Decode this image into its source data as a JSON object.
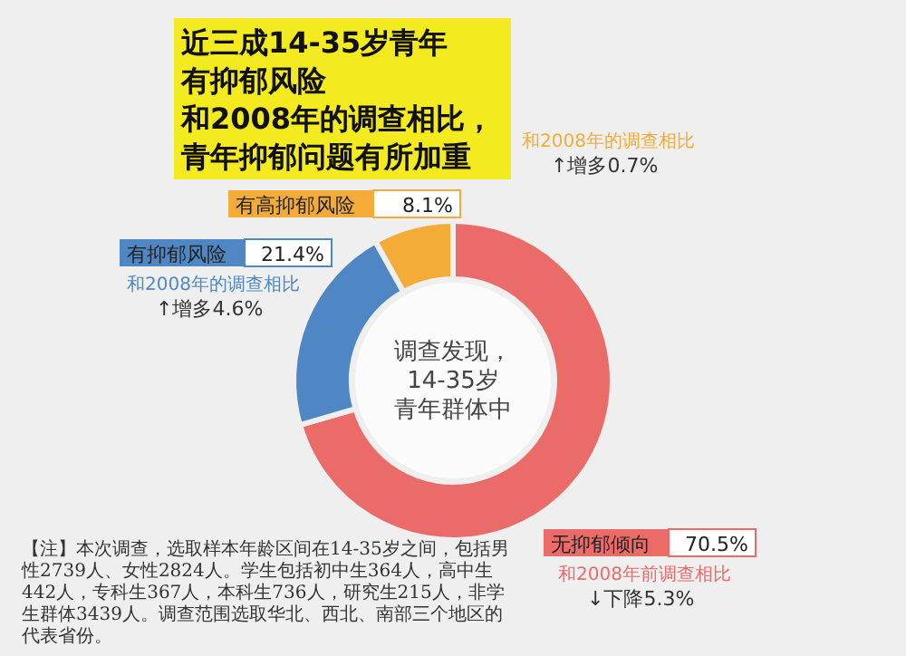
{
  "chart_data": {
    "type": "donut",
    "title": "近三成14-35岁青年有抑郁风险",
    "subtitle": "和2008年的调查相比，青年抑郁问题有所加重",
    "categories": [
      "无抑郁倾向",
      "有抑郁风险",
      "有高抑郁风险"
    ],
    "values": [
      70.5,
      21.4,
      8.1
    ],
    "value_labels": [
      "70.5%",
      "21.4%",
      "8.1%"
    ],
    "colors": [
      "#ea6b68",
      "#4f87c4",
      "#f4ab38"
    ],
    "annotations": [
      "调查发现，",
      "14-35岁",
      "青年群体中",
      "和2008年前调查相比",
      "和2008年的调查相比",
      "和2008年的调查相比",
      "↓下降5.3%",
      "↑增多4.6%",
      "↑增多0.7%",
      "【注】本次调查，选取样本年龄区间在14-35岁之间，包括男性2739人、女性2824人。学生包括初中生364人，高中生442人，专科生367人，本科生736人，研究生215人，非学生群体3439人。调查范围选取华北、西北、南部三个地区的代表省份。"
    ]
  }
}
